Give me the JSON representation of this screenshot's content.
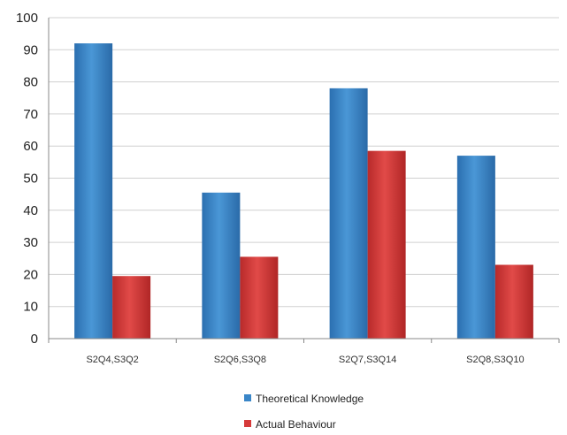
{
  "chart_data": {
    "type": "bar",
    "categories": [
      "S2Q4,S3Q2",
      "S2Q6,S3Q8",
      "S2Q7,S3Q14",
      "S2Q8,S3Q10"
    ],
    "series": [
      {
        "name": "Theoretical Knowledge",
        "values": [
          92,
          45.5,
          78,
          57
        ],
        "color": "#3a86c8"
      },
      {
        "name": "Actual Behaviour",
        "values": [
          19.5,
          25.5,
          58.5,
          23
        ],
        "color": "#d63a3a"
      }
    ],
    "title": "",
    "xlabel": "",
    "ylabel": "",
    "ylim": [
      0,
      100
    ],
    "yticks": [
      0,
      10,
      20,
      30,
      40,
      50,
      60,
      70,
      80,
      90,
      100
    ],
    "grid": true,
    "legend": "bottom-center"
  }
}
